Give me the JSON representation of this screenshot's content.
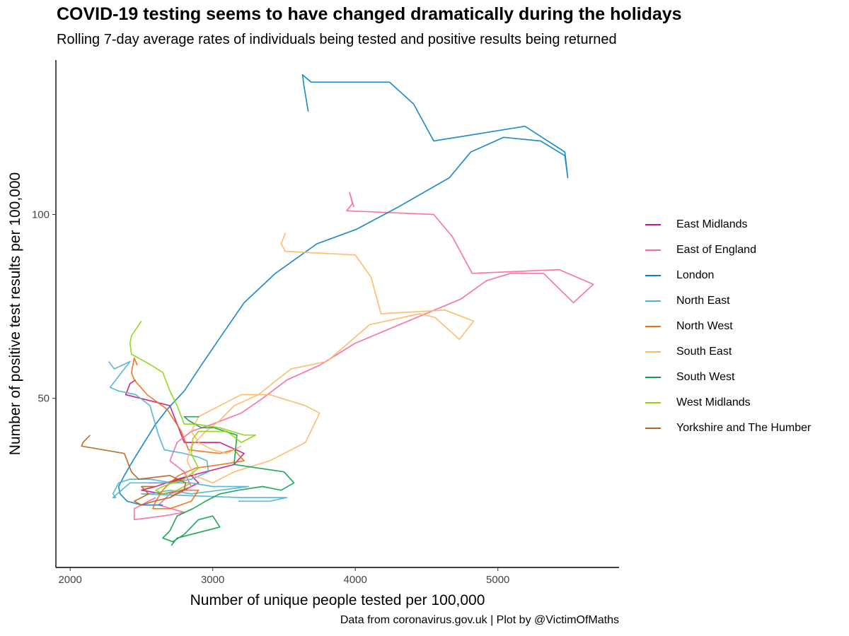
{
  "title": "COVID-19 testing seems to have changed dramatically during the holidays",
  "subtitle": "Rolling 7-day average rates of individuals being tested and positive results being returned",
  "caption": "Data from coronavirus.gov.uk | Plot by @VictimOfMaths",
  "chart_data": {
    "type": "line",
    "xlabel": "Number of unique people tested per 100,000",
    "ylabel": "Number of positive test results per 100,000",
    "xlim": [
      1900,
      5850
    ],
    "ylim": [
      4,
      142
    ],
    "x_ticks": [
      2000,
      3000,
      4000,
      5000
    ],
    "y_ticks": [
      50,
      100
    ],
    "grid": false,
    "legend_position": "right",
    "series": [
      {
        "name": "East Midlands",
        "color": "#C51B8A",
        "points": [
          [
            2460,
            55
          ],
          [
            2420,
            54
          ],
          [
            2390,
            51
          ],
          [
            2700,
            48
          ],
          [
            2800,
            38
          ],
          [
            3050,
            38
          ],
          [
            3220,
            35
          ],
          [
            3150,
            32
          ],
          [
            2950,
            30
          ],
          [
            2750,
            28
          ],
          [
            2600,
            26
          ],
          [
            2500,
            25
          ],
          [
            2650,
            24
          ],
          [
            2800,
            25
          ],
          [
            2900,
            27
          ],
          [
            2850,
            29
          ],
          [
            2700,
            27
          ],
          [
            2550,
            27
          ]
        ]
      },
      {
        "name": "East of England",
        "color": "#F768A1",
        "points": [
          [
            3990,
            102
          ],
          [
            3960,
            106
          ],
          [
            3980,
            103
          ],
          [
            3940,
            101
          ],
          [
            4550,
            100
          ],
          [
            4680,
            94
          ],
          [
            4820,
            84
          ],
          [
            5430,
            85
          ],
          [
            5670,
            81
          ],
          [
            5530,
            76
          ],
          [
            5320,
            84
          ],
          [
            5090,
            84
          ],
          [
            4920,
            82
          ],
          [
            4740,
            77
          ],
          [
            4000,
            65
          ],
          [
            3750,
            59
          ],
          [
            3520,
            55
          ],
          [
            3350,
            50
          ],
          [
            3200,
            46
          ],
          [
            3000,
            43
          ],
          [
            2850,
            41
          ],
          [
            2750,
            38
          ],
          [
            2700,
            33
          ],
          [
            2800,
            30
          ],
          [
            2850,
            26
          ],
          [
            2700,
            24
          ],
          [
            2620,
            21
          ],
          [
            2800,
            19
          ],
          [
            2650,
            18
          ],
          [
            2450,
            17
          ],
          [
            2450,
            20
          ],
          [
            2600,
            23
          ]
        ]
      },
      {
        "name": "London",
        "color": "#0C7FC7",
        "points": [
          [
            3670,
            128
          ],
          [
            3640,
            135
          ],
          [
            3630,
            138
          ],
          [
            3690,
            136
          ],
          [
            4240,
            136
          ],
          [
            4410,
            130
          ],
          [
            4550,
            120
          ],
          [
            5190,
            124
          ],
          [
            5470,
            117
          ],
          [
            5490,
            110
          ],
          [
            5470,
            116
          ],
          [
            5300,
            120
          ],
          [
            5040,
            121
          ],
          [
            4810,
            117
          ],
          [
            4660,
            110
          ],
          [
            4300,
            102
          ],
          [
            4010,
            96
          ],
          [
            3730,
            92
          ],
          [
            3440,
            84
          ],
          [
            3220,
            76
          ],
          [
            3060,
            67
          ],
          [
            2920,
            59
          ],
          [
            2800,
            52
          ],
          [
            2680,
            47
          ],
          [
            2600,
            43
          ],
          [
            2520,
            38
          ],
          [
            2440,
            33
          ],
          [
            2380,
            29
          ],
          [
            2340,
            26
          ],
          [
            2350,
            24
          ],
          [
            2400,
            22
          ],
          [
            2500,
            21
          ],
          [
            2650,
            21
          ]
        ]
      },
      {
        "name": "North East",
        "color": "#4EB3D3",
        "points": [
          [
            2270,
            60
          ],
          [
            2310,
            58
          ],
          [
            2420,
            60
          ],
          [
            2280,
            53
          ],
          [
            2340,
            52
          ],
          [
            2460,
            51
          ],
          [
            2560,
            48
          ],
          [
            2590,
            44
          ],
          [
            2620,
            40
          ],
          [
            2660,
            36
          ],
          [
            2800,
            35
          ],
          [
            2900,
            34
          ],
          [
            2960,
            33
          ],
          [
            2970,
            30
          ],
          [
            2850,
            28
          ],
          [
            2720,
            27
          ],
          [
            2560,
            28
          ],
          [
            2420,
            28
          ],
          [
            2340,
            27
          ],
          [
            2300,
            24
          ],
          [
            2320,
            23
          ],
          [
            2300,
            23
          ],
          [
            2420,
            27
          ],
          [
            2600,
            27
          ],
          [
            2850,
            27
          ],
          [
            3000,
            26
          ],
          [
            3250,
            26
          ],
          [
            3050,
            25
          ],
          [
            2850,
            24
          ],
          [
            2700,
            25
          ],
          [
            2560,
            24
          ],
          [
            2500,
            24
          ],
          [
            3200,
            23
          ],
          [
            3520,
            23
          ],
          [
            3400,
            22
          ],
          [
            3180,
            22
          ]
        ]
      },
      {
        "name": "North West",
        "color": "#EC7014",
        "points": [
          [
            2470,
            59
          ],
          [
            2450,
            61
          ],
          [
            2430,
            57
          ],
          [
            2450,
            55
          ],
          [
            2540,
            51
          ],
          [
            2680,
            47
          ],
          [
            2780,
            41
          ],
          [
            2830,
            36
          ],
          [
            3050,
            35
          ],
          [
            3150,
            36
          ],
          [
            3220,
            33
          ],
          [
            3060,
            32
          ],
          [
            2880,
            31
          ],
          [
            2760,
            29
          ],
          [
            2700,
            27
          ],
          [
            2650,
            25
          ],
          [
            2600,
            22
          ],
          [
            2580,
            20
          ],
          [
            2700,
            20
          ],
          [
            2850,
            22
          ],
          [
            2900,
            25
          ],
          [
            2800,
            25
          ],
          [
            2700,
            23
          ]
        ]
      },
      {
        "name": "South East",
        "color": "#FDB863",
        "points": [
          [
            3510,
            95
          ],
          [
            3480,
            92
          ],
          [
            3510,
            90
          ],
          [
            4000,
            89
          ],
          [
            4110,
            83
          ],
          [
            4180,
            73
          ],
          [
            4630,
            74
          ],
          [
            4830,
            71
          ],
          [
            4730,
            66
          ],
          [
            4560,
            72
          ],
          [
            4450,
            73
          ],
          [
            4100,
            70
          ],
          [
            3950,
            65
          ],
          [
            3800,
            60
          ],
          [
            3550,
            58
          ],
          [
            3450,
            55
          ],
          [
            3320,
            51
          ],
          [
            3150,
            48
          ],
          [
            3050,
            44
          ],
          [
            2950,
            41
          ],
          [
            2850,
            37
          ],
          [
            2820,
            33
          ],
          [
            2870,
            29
          ],
          [
            3000,
            27
          ],
          [
            3150,
            30
          ],
          [
            3400,
            33
          ],
          [
            3650,
            38
          ],
          [
            3750,
            46
          ],
          [
            3650,
            48
          ],
          [
            3400,
            51
          ],
          [
            3200,
            51
          ],
          [
            3050,
            48
          ],
          [
            2900,
            45
          ],
          [
            2850,
            41
          ],
          [
            2900,
            38
          ],
          [
            3000,
            36
          ],
          [
            3100,
            35
          ],
          [
            3200,
            37
          ]
        ]
      },
      {
        "name": "South West",
        "color": "#10A04C",
        "points": [
          [
            2800,
            45
          ],
          [
            2900,
            45
          ],
          [
            2800,
            45
          ],
          [
            2830,
            44
          ],
          [
            2920,
            42
          ],
          [
            3010,
            42
          ],
          [
            3170,
            40
          ],
          [
            3150,
            32
          ],
          [
            3500,
            30
          ],
          [
            3570,
            27
          ],
          [
            3480,
            25
          ],
          [
            3350,
            26
          ],
          [
            3180,
            25
          ],
          [
            3050,
            24
          ],
          [
            2950,
            22
          ],
          [
            2860,
            20
          ],
          [
            2750,
            18
          ],
          [
            2700,
            14
          ],
          [
            2650,
            12
          ],
          [
            2720,
            11
          ],
          [
            2800,
            13
          ],
          [
            2900,
            17
          ],
          [
            3000,
            18
          ],
          [
            3050,
            15
          ],
          [
            2950,
            14
          ],
          [
            2850,
            13
          ],
          [
            2750,
            12
          ],
          [
            2710,
            10
          ]
        ]
      },
      {
        "name": "West Midlands",
        "color": "#8ED414",
        "points": [
          [
            2500,
            71
          ],
          [
            2430,
            67
          ],
          [
            2420,
            65
          ],
          [
            2430,
            62
          ],
          [
            2570,
            59
          ],
          [
            2650,
            57
          ],
          [
            2700,
            52
          ],
          [
            2750,
            48
          ],
          [
            2800,
            43
          ],
          [
            2880,
            43
          ],
          [
            3050,
            42
          ],
          [
            3220,
            40
          ],
          [
            3300,
            40
          ],
          [
            3200,
            38
          ],
          [
            3100,
            41
          ],
          [
            3000,
            41
          ],
          [
            2900,
            41
          ],
          [
            2860,
            39
          ],
          [
            2850,
            35
          ],
          [
            2900,
            31
          ],
          [
            2800,
            28
          ],
          [
            2720,
            27
          ],
          [
            2650,
            26
          ],
          [
            2600,
            25
          ],
          [
            2650,
            24
          ],
          [
            2750,
            25
          ],
          [
            2850,
            27
          ]
        ]
      },
      {
        "name": "Yorkshire and The Humber",
        "color": "#B5651D",
        "points": [
          [
            2140,
            40
          ],
          [
            2090,
            38
          ],
          [
            2080,
            37
          ],
          [
            2380,
            35
          ],
          [
            2430,
            30
          ],
          [
            2480,
            28
          ],
          [
            2700,
            29
          ],
          [
            2810,
            27
          ],
          [
            2800,
            25
          ],
          [
            2740,
            24
          ],
          [
            2700,
            23
          ],
          [
            2590,
            22
          ],
          [
            2500,
            21
          ],
          [
            2450,
            22
          ],
          [
            2500,
            23
          ],
          [
            2550,
            24
          ],
          [
            2500,
            26
          ],
          [
            2600,
            26
          ]
        ]
      }
    ]
  }
}
